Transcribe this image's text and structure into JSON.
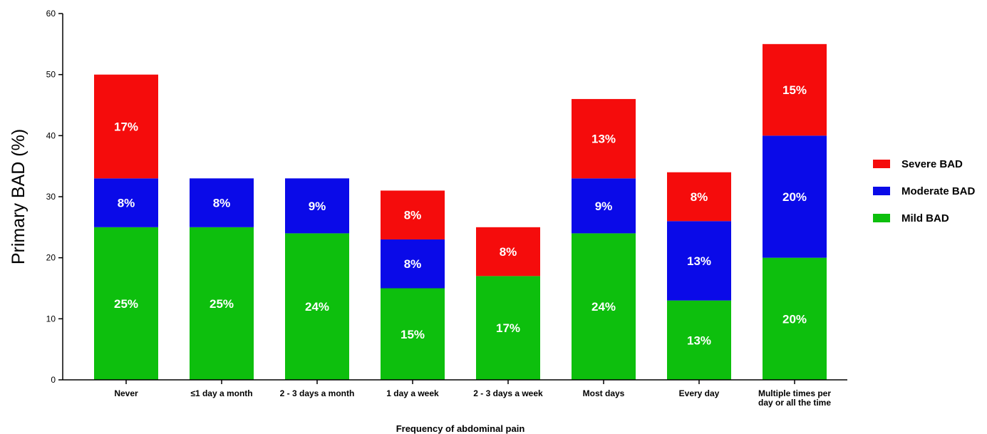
{
  "chart_data": {
    "type": "bar",
    "stacked": true,
    "categories": [
      [
        "Never"
      ],
      [
        "≤1 day a month"
      ],
      [
        "2 - 3 days a month"
      ],
      [
        "1 day a week"
      ],
      [
        "2 - 3 days a week"
      ],
      [
        "Most days"
      ],
      [
        "Every day"
      ],
      [
        "Multiple times per",
        "day or all the time"
      ]
    ],
    "series": [
      {
        "name": "Mild BAD",
        "color": "#0dbf0d",
        "values": [
          25,
          25,
          24,
          15,
          17,
          24,
          13,
          20
        ],
        "labels": [
          "25%",
          "25%",
          "24%",
          "15%",
          "17%",
          "24%",
          "13%",
          "20%"
        ]
      },
      {
        "name": "Moderate BAD",
        "color": "#0a0ae8",
        "values": [
          8,
          8,
          9,
          8,
          0,
          9,
          13,
          20
        ],
        "labels": [
          "8%",
          "8%",
          "9%",
          "8%",
          "",
          "9%",
          "13%",
          "20%"
        ]
      },
      {
        "name": "Severe BAD",
        "color": "#f50c0c",
        "values": [
          17,
          0,
          0,
          8,
          8,
          13,
          8,
          15
        ],
        "labels": [
          "17%",
          "",
          "",
          "8%",
          "8%",
          "13%",
          "8%",
          "15%"
        ]
      }
    ],
    "legend_order": [
      "Severe BAD",
      "Moderate BAD",
      "Mild BAD"
    ],
    "ylabel": "Primary BAD (%)",
    "xlabel": "Frequency of abdominal pain",
    "ylim": [
      0,
      60
    ],
    "yticks": [
      0,
      10,
      20,
      30,
      40,
      50,
      60
    ],
    "grid": false,
    "legend_position": "right"
  }
}
